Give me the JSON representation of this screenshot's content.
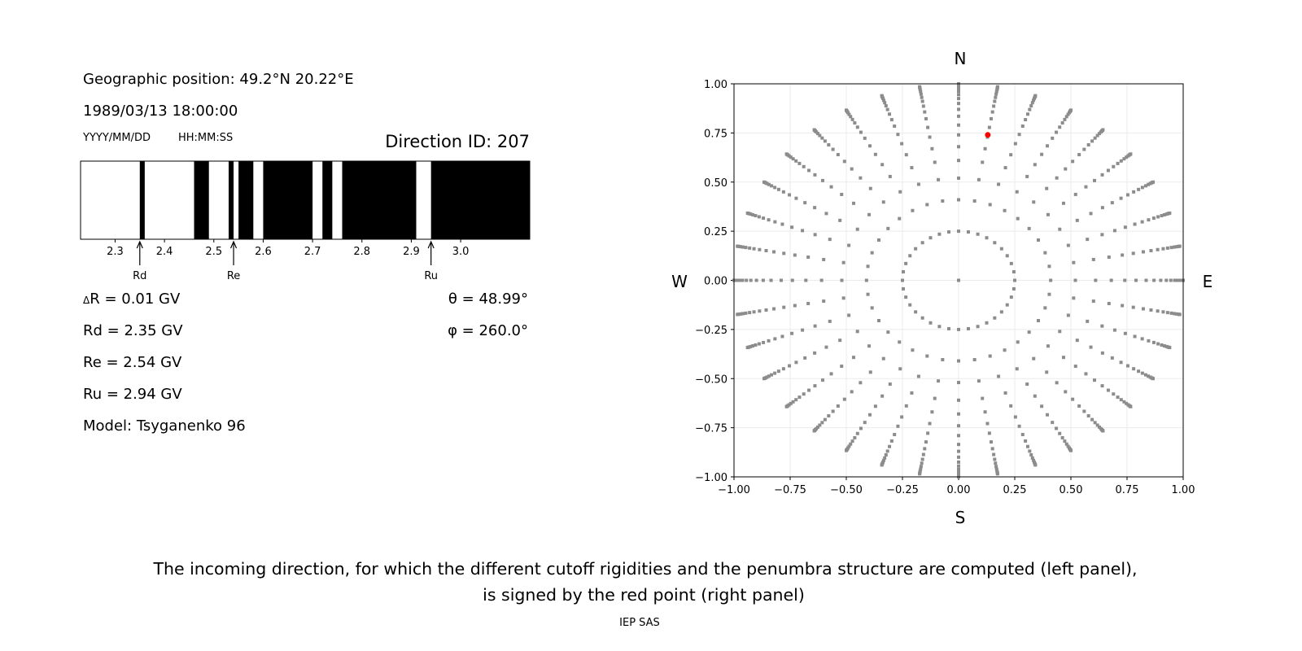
{
  "info": {
    "geo_position": "Geographic position: 49.2°N 20.22°E",
    "datetime": "1989/03/13 18:00:00",
    "date_format": "YYYY/MM/DD",
    "time_format": "HH:MM:SS",
    "direction_id": "Direction ID: 207",
    "delta_r": "R = 0.01 GV",
    "delta_symbol": "Δ",
    "rd": "Rd = 2.35 GV",
    "re": "Re = 2.54 GV",
    "ru": "Ru = 2.94 GV",
    "model": "Model: Tsyganenko 96",
    "theta": "θ = 48.99°",
    "phi": "φ = 260.0°"
  },
  "caption": {
    "line1": "The incoming direction, for which the different cutoff rigidities and the penumbra structure are computed (left panel),",
    "line2": "is signed by the red point (right panel)",
    "credit": "IEP SAS"
  },
  "chart_data": [
    {
      "type": "penumbra-bar",
      "xlim": [
        2.23,
        3.14
      ],
      "xticks": [
        2.3,
        2.4,
        2.5,
        2.6,
        2.7,
        2.8,
        2.9,
        3.0
      ],
      "xtick_labels": [
        "2.3",
        "2.4",
        "2.5",
        "2.6",
        "2.7",
        "2.8",
        "2.9",
        "3.0"
      ],
      "forbidden_intervals": [
        [
          2.35,
          2.36
        ],
        [
          2.46,
          2.49
        ],
        [
          2.53,
          2.54
        ],
        [
          2.55,
          2.58
        ],
        [
          2.6,
          2.7
        ],
        [
          2.72,
          2.74
        ],
        [
          2.76,
          2.91
        ],
        [
          2.94,
          3.14
        ]
      ],
      "colors": {
        "allowed": "#ffffff",
        "forbidden": "#000000"
      },
      "markers": [
        {
          "label": "Rd",
          "value": 2.35
        },
        {
          "label": "Re",
          "value": 2.54
        },
        {
          "label": "Ru",
          "value": 2.94
        }
      ]
    },
    {
      "type": "scatter",
      "xlim": [
        -1,
        1
      ],
      "ylim": [
        -1,
        1
      ],
      "ticks": [
        -1,
        -0.75,
        -0.5,
        -0.25,
        0,
        0.25,
        0.5,
        0.75,
        1
      ],
      "tick_labels": [
        "−1.00",
        "−0.75",
        "−0.50",
        "−0.25",
        "0.00",
        "0.25",
        "0.50",
        "0.75",
        "1.00"
      ],
      "grid": true,
      "directions": {
        "top": "N",
        "bottom": "S",
        "left": "W",
        "right": "E"
      },
      "direction_grid": {
        "azimuth_step_deg": 10,
        "radii": [
          0.25,
          0.41,
          0.52,
          0.61,
          0.68,
          0.74,
          0.79,
          0.835,
          0.87,
          0.9,
          0.925,
          0.945,
          0.962,
          0.975,
          0.985,
          0.992,
          0.997,
          1.0
        ],
        "include_center": true
      },
      "point_color": "#8c8c8c",
      "selected_point": {
        "x": 0.13,
        "y": 0.74,
        "color": "#ff0000"
      }
    }
  ]
}
